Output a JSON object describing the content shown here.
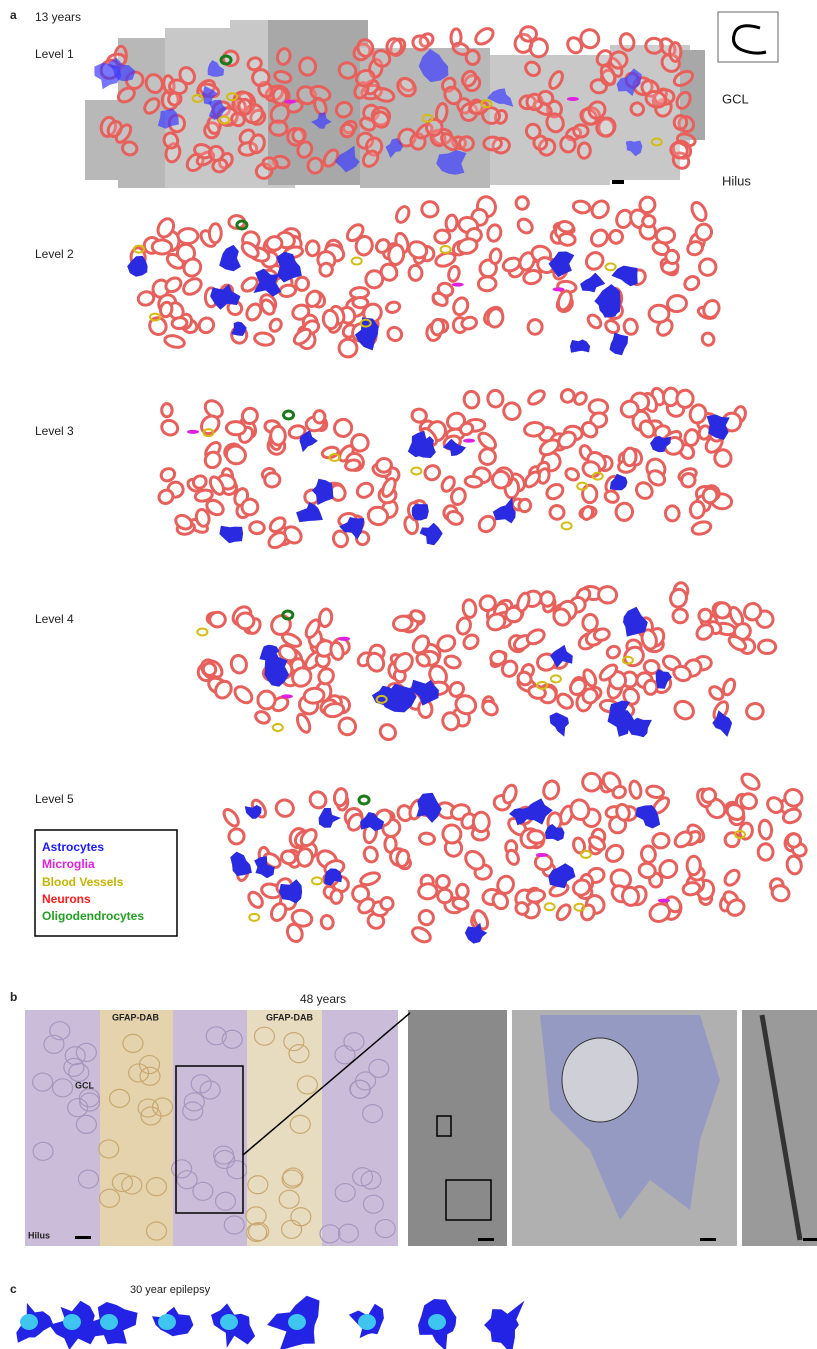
{
  "panel_a": {
    "label": "a",
    "age": "13 years",
    "levels": [
      "Level 1",
      "Level 2",
      "Level 3",
      "Level 4",
      "Level 5"
    ],
    "orientation": {
      "top": "GCL",
      "bottom": "Hilus"
    },
    "legend": [
      "Astrocytes",
      "Microglia",
      "Blood Vessels",
      "Neurons",
      "Oligodendrocytes"
    ]
  },
  "panel_b": {
    "label": "b",
    "age": "48 years",
    "stains": [
      "GFAP-DAB",
      "GFAP-DAB"
    ],
    "gcl": "GCL",
    "hilus": "Hilus"
  },
  "panel_c": {
    "label": "c",
    "title": "30 year epilepsy"
  }
}
